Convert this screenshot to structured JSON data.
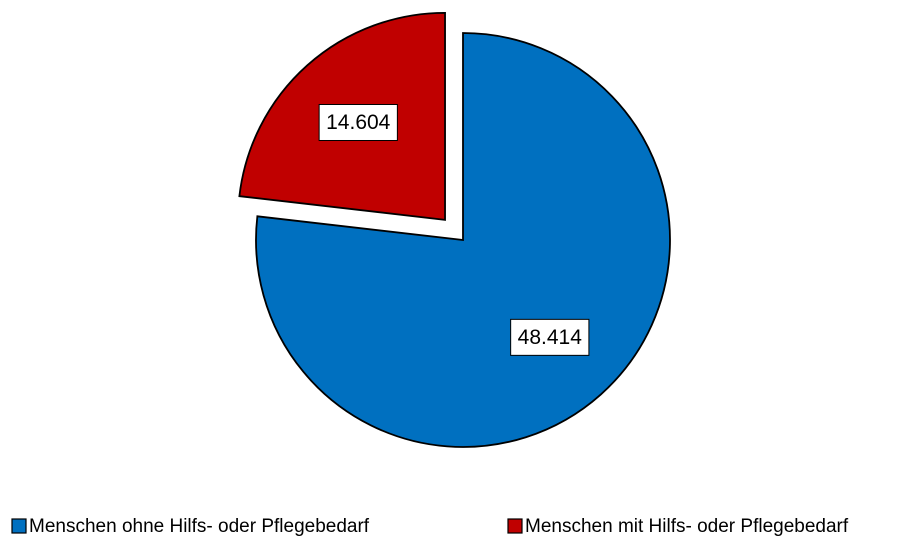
{
  "chart_data": {
    "type": "pie",
    "categories": [
      "Menschen ohne Hilfs- oder Pflegebedarf",
      "Menschen mit Hilfs- oder Pflegebedarf"
    ],
    "values": [
      48414,
      14604
    ],
    "value_labels": [
      "48.414",
      "14.604"
    ],
    "colors": [
      "#0070c0",
      "#c00000"
    ],
    "exploded": [
      false,
      true
    ],
    "legend": "bottom"
  }
}
